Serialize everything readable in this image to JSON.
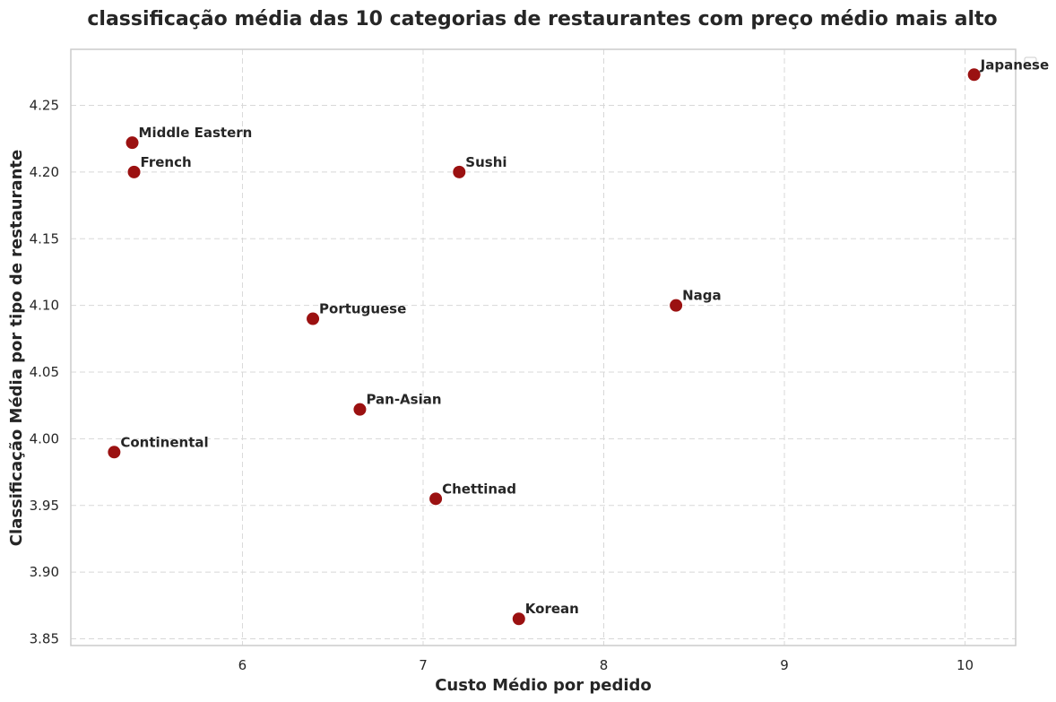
{
  "chart_data": {
    "type": "scatter",
    "title": "classificação média das 10 categorias de restaurantes com preço médio mais alto",
    "xlabel": "Custo Médio por pedido",
    "ylabel": "Classificação Média por tipo de restaurante",
    "xlim": [
      5.05,
      10.28
    ],
    "ylim": [
      3.845,
      4.292
    ],
    "xticks": [
      6,
      7,
      8,
      9,
      10
    ],
    "xtick_labels": [
      "6",
      "7",
      "8",
      "9",
      "10"
    ],
    "yticks": [
      3.85,
      3.9,
      3.95,
      4.0,
      4.05,
      4.1,
      4.15,
      4.2,
      4.25
    ],
    "ytick_labels": [
      "3.85",
      "3.90",
      "3.95",
      "4.00",
      "4.05",
      "4.10",
      "4.15",
      "4.20",
      "4.25"
    ],
    "grid": true,
    "legend": "top-right",
    "marker_color": "#9b1111",
    "points": [
      {
        "label": "Japanese",
        "x": 10.05,
        "y": 4.273
      },
      {
        "label": "Middle Eastern",
        "x": 5.39,
        "y": 4.222
      },
      {
        "label": "French",
        "x": 5.4,
        "y": 4.2
      },
      {
        "label": "Sushi",
        "x": 7.2,
        "y": 4.2
      },
      {
        "label": "Naga",
        "x": 8.4,
        "y": 4.1
      },
      {
        "label": "Portuguese",
        "x": 6.39,
        "y": 4.09
      },
      {
        "label": "Pan-Asian",
        "x": 6.65,
        "y": 4.022
      },
      {
        "label": "Continental",
        "x": 5.29,
        "y": 3.99
      },
      {
        "label": "Chettinad",
        "x": 7.07,
        "y": 3.955
      },
      {
        "label": "Korean",
        "x": 7.53,
        "y": 3.865
      }
    ]
  }
}
